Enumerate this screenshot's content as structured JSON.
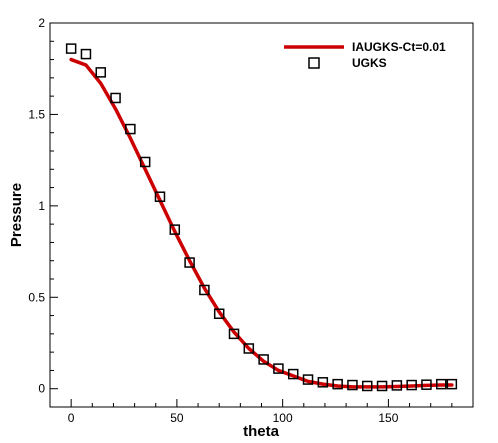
{
  "chart_data": {
    "type": "line",
    "title": "",
    "xlabel": "theta",
    "ylabel": "Pressure",
    "xlim": [
      -10,
      190
    ],
    "ylim": [
      -0.1,
      2
    ],
    "xticks": [
      0,
      50,
      100,
      150
    ],
    "yticks": [
      0,
      0.5,
      1,
      1.5,
      2
    ],
    "xtick_labels": [
      "0",
      "50",
      "100",
      "150"
    ],
    "ytick_labels": [
      "0",
      "0.5",
      "1",
      "1.5",
      "2"
    ],
    "grid": false,
    "legend_position": "top-right",
    "series": [
      {
        "name": "IAUGKS-Ct=0.01",
        "style": "line",
        "color": "#cc0000",
        "x": [
          0,
          7,
          14,
          21,
          28,
          35,
          42,
          49,
          56,
          63,
          70,
          77,
          84,
          91,
          98,
          105,
          112,
          119,
          126,
          133,
          140,
          147,
          154,
          161,
          168,
          175,
          180
        ],
        "y": [
          1.8,
          1.77,
          1.67,
          1.53,
          1.37,
          1.2,
          1.03,
          0.86,
          0.7,
          0.55,
          0.42,
          0.31,
          0.22,
          0.15,
          0.1,
          0.07,
          0.04,
          0.025,
          0.015,
          0.01,
          0.01,
          0.01,
          0.012,
          0.015,
          0.018,
          0.02,
          0.02
        ]
      },
      {
        "name": "UGKS",
        "style": "marker",
        "marker": "square",
        "color": "#000000",
        "x": [
          0,
          7,
          14,
          21,
          28,
          35,
          42,
          49,
          56,
          63,
          70,
          77,
          84,
          91,
          98,
          105,
          112,
          119,
          126,
          133,
          140,
          147,
          154,
          161,
          168,
          175,
          180
        ],
        "y": [
          1.86,
          1.83,
          1.73,
          1.59,
          1.42,
          1.24,
          1.05,
          0.87,
          0.69,
          0.54,
          0.41,
          0.3,
          0.22,
          0.16,
          0.11,
          0.08,
          0.05,
          0.035,
          0.025,
          0.02,
          0.015,
          0.015,
          0.018,
          0.02,
          0.022,
          0.025,
          0.025
        ]
      }
    ]
  }
}
